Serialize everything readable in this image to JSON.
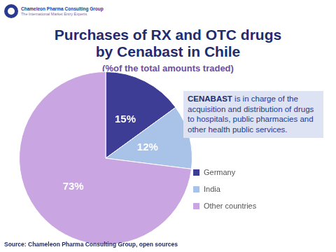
{
  "logo": {
    "company": "Chameleon Pharma Consulting Group",
    "tagline": "The International Market Entry Experts"
  },
  "chart_data": {
    "type": "pie",
    "title": "Purchases of RX and OTC drugs\nby Cenabast in Chile",
    "subtitle": "(%of the total amounts traded)",
    "categories": [
      "Germany",
      "India",
      "Other countries"
    ],
    "values": [
      15,
      12,
      73
    ],
    "value_labels": [
      "15%",
      "12%",
      "73%"
    ],
    "colors": [
      "#3d3d96",
      "#a9c2e8",
      "#c9a6e2"
    ],
    "data_labels": true,
    "legend": "right",
    "annotation": "CENABAST is in charge of the acquisition and distribution of drugs to hospitals, public pharmacies and other health public services.",
    "source": "Source: Chameleon Pharma Consulting Group, open sources"
  }
}
